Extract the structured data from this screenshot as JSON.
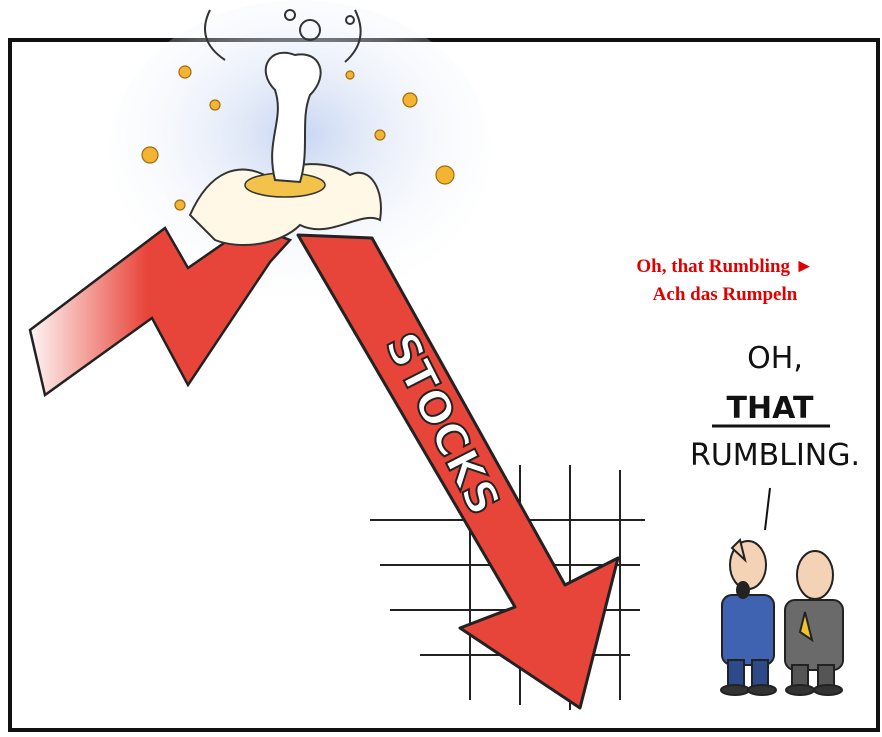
{
  "caption": {
    "english": "Oh, that Rumbling ►",
    "german": "Ach das Rumpeln"
  },
  "speech": {
    "line1": "OH,",
    "line2": "THAT",
    "line3": "RUMBLING."
  },
  "arrow_label": "STOCKS"
}
